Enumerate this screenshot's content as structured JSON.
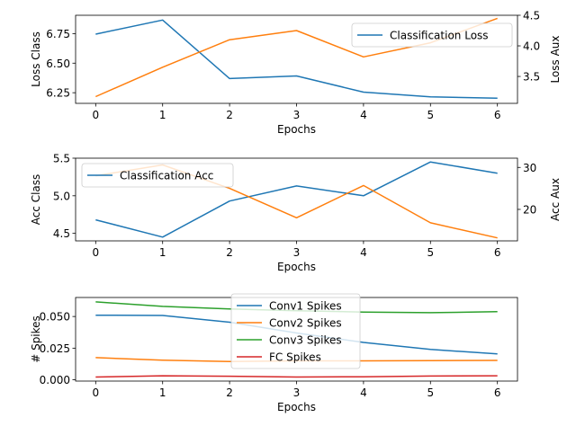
{
  "chart_data": [
    {
      "type": "line",
      "xlabel": "Epochs",
      "ylabel": "Loss Class",
      "y2label": "Loss Aux",
      "x": [
        0,
        1,
        2,
        3,
        4,
        5,
        6
      ],
      "xlim": [
        -0.3,
        6.3
      ],
      "ylim": [
        6.16,
        6.905
      ],
      "y2lim": [
        3.06,
        4.5
      ],
      "yticks": [
        6.25,
        6.5,
        6.75
      ],
      "ytick_labels": [
        "6.25",
        "6.50",
        "6.75"
      ],
      "y2ticks": [
        3.5,
        4.0,
        4.5
      ],
      "y2tick_labels": [
        "3.5",
        "4.0",
        "4.5"
      ],
      "legend_position": "upper right",
      "series": [
        {
          "name": "Classification Loss",
          "axis": "left",
          "color": "#1f77b4",
          "values": [
            6.745,
            6.865,
            6.37,
            6.392,
            6.255,
            6.215,
            6.203
          ],
          "in_legend": true
        },
        {
          "name": "",
          "axis": "right",
          "color": "#ff7f0e",
          "values": [
            3.17,
            3.65,
            4.1,
            4.25,
            3.82,
            4.05,
            4.45
          ],
          "in_legend": false
        }
      ]
    },
    {
      "type": "line",
      "xlabel": "Epochs",
      "ylabel": "Acc Class",
      "y2label": "Acc Aux",
      "x": [
        0,
        1,
        2,
        3,
        4,
        5,
        6
      ],
      "xlim": [
        -0.3,
        6.3
      ],
      "ylim": [
        4.4,
        5.5
      ],
      "y2lim": [
        12.5,
        32.2
      ],
      "yticks": [
        4.5,
        5.0,
        5.5
      ],
      "ytick_labels": [
        "4.5",
        "5.0",
        "5.5"
      ],
      "y2ticks": [
        20,
        30
      ],
      "y2tick_labels": [
        "20",
        "30"
      ],
      "legend_position": "upper left",
      "series": [
        {
          "name": "Classification Acc",
          "axis": "left",
          "color": "#1f77b4",
          "values": [
            4.68,
            4.45,
            4.93,
            5.13,
            5.0,
            5.45,
            5.3
          ],
          "in_legend": true
        },
        {
          "name": "",
          "axis": "right",
          "color": "#ff7f0e",
          "values": [
            28.0,
            30.6,
            25.0,
            18.0,
            25.7,
            16.8,
            13.2
          ],
          "in_legend": false
        }
      ]
    },
    {
      "type": "line",
      "xlabel": "Epochs",
      "ylabel": "# Spikes",
      "x": [
        0,
        1,
        2,
        3,
        4,
        5,
        6
      ],
      "xlim": [
        -0.3,
        6.3
      ],
      "ylim": [
        -0.001,
        0.065
      ],
      "yticks": [
        0.0,
        0.025,
        0.05
      ],
      "ytick_labels": [
        "0.000",
        "0.025",
        "0.050"
      ],
      "legend_position": "upper center",
      "series": [
        {
          "name": "Conv1 Spikes",
          "color": "#1f77b4",
          "values": [
            0.051,
            0.0508,
            0.0455,
            0.037,
            0.0295,
            0.024,
            0.0205
          ],
          "in_legend": true
        },
        {
          "name": "Conv2 Spikes",
          "color": "#ff7f0e",
          "values": [
            0.0175,
            0.0155,
            0.0145,
            0.015,
            0.015,
            0.0152,
            0.0153
          ],
          "in_legend": true
        },
        {
          "name": "Conv3 Spikes",
          "color": "#2ca02c",
          "values": [
            0.0615,
            0.058,
            0.056,
            0.0545,
            0.0535,
            0.053,
            0.0538
          ],
          "in_legend": true
        },
        {
          "name": "FC Spikes",
          "color": "#d62728",
          "values": [
            0.0022,
            0.0032,
            0.0028,
            0.0022,
            0.0024,
            0.003,
            0.0032
          ],
          "in_legend": true
        }
      ]
    }
  ]
}
